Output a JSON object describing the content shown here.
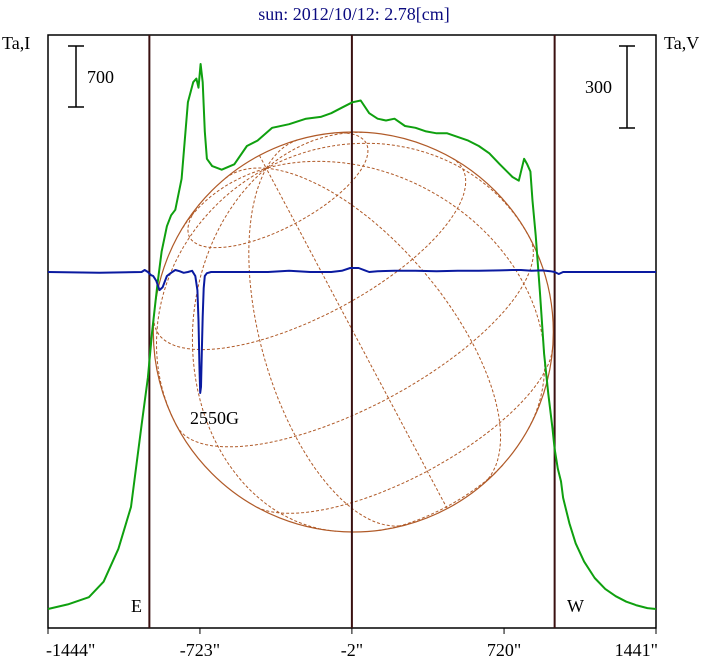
{
  "title": "sun: 2012/10/12: 2.78[cm]",
  "left_axis_label": "Ta,I",
  "right_axis_label": "Ta,V",
  "left_scale_bar": "700",
  "right_scale_bar": "300",
  "east_label": "E",
  "west_label": "W",
  "annotation": "2550G",
  "colors": {
    "intensity": "#0fa00f",
    "polarization": "#0a1aa0",
    "disk": "#b05a28",
    "markers": "#3a1010",
    "title": "#0b0b80"
  },
  "chart_data": {
    "type": "line",
    "title": "sun: 2012/10/12: 2.78[cm]",
    "x_unit": "arcsec",
    "xlim": [
      -1444,
      1441
    ],
    "x_ticks": [
      -1444,
      -723,
      -2,
      720,
      1441
    ],
    "x_tick_labels": [
      "-1444\"",
      "-723\"",
      "-2\"",
      "720\"",
      "1441\""
    ],
    "vertical_markers": [
      -963,
      -2,
      960
    ],
    "ylabel_left": "Ta,I",
    "ylabel_right": "Ta,V",
    "series": [
      {
        "axis": "Ta,I",
        "x": [
          -1444,
          -1350,
          -1250,
          -1180,
          -1110,
          -1050,
          -1000,
          -970,
          -950,
          -925,
          -905,
          -880,
          -860,
          -840,
          -810,
          -780,
          -755,
          -740,
          -730,
          -720,
          -710,
          -700,
          -690,
          -665,
          -620,
          -560,
          -500,
          -450,
          -380,
          -300,
          -220,
          -150,
          -100,
          -50,
          0,
          40,
          80,
          120,
          160,
          200,
          250,
          300,
          350,
          400,
          450,
          500,
          550,
          600,
          650,
          700,
          760,
          790,
          815,
          830,
          845,
          855,
          870,
          890,
          910,
          930,
          950,
          960,
          975,
          990,
          1000,
          1030,
          1060,
          1100,
          1150,
          1200,
          1250,
          1300,
          1350,
          1400,
          1441
        ],
        "values": [
          0,
          25,
          65,
          150,
          330,
          560,
          1010,
          1270,
          1520,
          1780,
          1960,
          2100,
          2160,
          2190,
          2360,
          2780,
          2890,
          2910,
          2860,
          2990,
          2890,
          2620,
          2470,
          2430,
          2410,
          2440,
          2540,
          2570,
          2640,
          2660,
          2690,
          2700,
          2720,
          2750,
          2780,
          2790,
          2720,
          2690,
          2680,
          2690,
          2650,
          2640,
          2620,
          2610,
          2610,
          2590,
          2570,
          2540,
          2500,
          2440,
          2370,
          2350,
          2470,
          2440,
          2400,
          2240,
          2050,
          1740,
          1400,
          1180,
          990,
          880,
          770,
          700,
          610,
          470,
          360,
          260,
          170,
          110,
          70,
          40,
          20,
          5,
          0
        ]
      },
      {
        "axis": "Ta,V",
        "x": [
          -1444,
          -1200,
          -1000,
          -985,
          -970,
          -955,
          -945,
          -930,
          -915,
          -900,
          -880,
          -860,
          -840,
          -820,
          -800,
          -780,
          -760,
          -745,
          -735,
          -730,
          -725,
          -722,
          -718,
          -714,
          -710,
          -705,
          -700,
          -690,
          -670,
          -640,
          -600,
          -500,
          -400,
          -300,
          -200,
          -100,
          -50,
          -10,
          30,
          60,
          80,
          120,
          200,
          300,
          400,
          500,
          600,
          700,
          760,
          800,
          850,
          900,
          940,
          960,
          980,
          1000,
          1050,
          1200,
          1441
        ],
        "values": [
          0,
          -2,
          0,
          5,
          0,
          -8,
          -10,
          -22,
          -45,
          -38,
          -10,
          -2,
          5,
          2,
          -2,
          0,
          3,
          -10,
          -45,
          -120,
          -240,
          -300,
          -285,
          -200,
          -110,
          -40,
          -10,
          -3,
          0,
          0,
          0,
          0,
          0,
          3,
          0,
          0,
          3,
          10,
          10,
          4,
          0,
          2,
          3,
          3,
          2,
          3,
          3,
          4,
          5,
          5,
          3,
          4,
          2,
          0,
          -5,
          0,
          0,
          0,
          0
        ]
      }
    ],
    "annotations": [
      {
        "x": -723,
        "text": "2550G"
      }
    ]
  }
}
